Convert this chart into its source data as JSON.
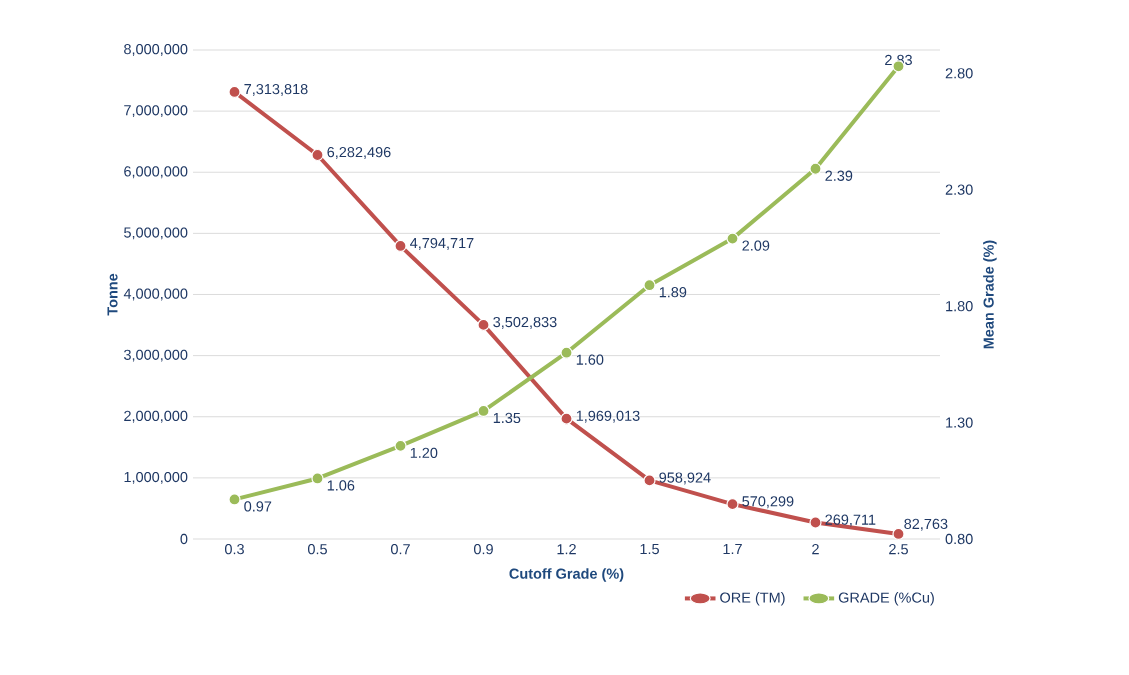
{
  "chart_data": {
    "type": "line",
    "xlabel": "Cutoff Grade (%)",
    "ylabel": "Tonne",
    "y2label": "Mean Grade (%)",
    "categories": [
      "0.3",
      "0.5",
      "0.7",
      "0.9",
      "1.2",
      "1.5",
      "1.7",
      "2",
      "2.5"
    ],
    "series": [
      {
        "name": "ORE (TM)",
        "color": "#c0504d",
        "values": [
          7313818,
          6282496,
          4794717,
          3502833,
          1969013,
          958924,
          570299,
          269711,
          82763
        ],
        "value_labels": [
          "7,313,818",
          "6,282,496",
          "4,794,717",
          "3,502,833",
          "1,969,013",
          "958,924",
          "570,299",
          "269,711",
          "82,763"
        ]
      },
      {
        "name": "GRADE (%Cu)",
        "color": "#9bbb59",
        "axis": "y2",
        "values": [
          0.97,
          1.06,
          1.2,
          1.35,
          1.6,
          1.89,
          2.09,
          2.39,
          2.83
        ],
        "value_labels": [
          "0.97",
          "1.06",
          "1.20",
          "1.35",
          "1.60",
          "1.89",
          "2.09",
          "2.39",
          "2.83"
        ]
      }
    ],
    "ylim": [
      0,
      8000000
    ],
    "yticks": [
      0,
      {
        "value": 1000000,
        "label": "1,000,000"
      },
      {
        "value": 2000000,
        "label": "2,000,000"
      },
      {
        "value": 3000000,
        "label": "3,000,000"
      },
      {
        "value": 4000000,
        "label": "4,000,000"
      },
      {
        "value": 5000000,
        "label": "5,000,000"
      },
      {
        "value": 6000000,
        "label": "6,000,000"
      },
      {
        "value": 7000000,
        "label": "7,000,000"
      },
      {
        "value": 8000000,
        "label": "8,000,000"
      }
    ],
    "y2lim": [
      0.8,
      2.9
    ],
    "y2ticks": [
      {
        "value": 0.8,
        "label": "0.80"
      },
      {
        "value": 1.3,
        "label": "1.30"
      },
      {
        "value": 1.8,
        "label": "1.80"
      },
      {
        "value": 2.3,
        "label": "2.30"
      },
      {
        "value": 2.8,
        "label": "2.80"
      }
    ],
    "grid": "y",
    "legend": "bottom right",
    "marker": "circle",
    "line_style": "solid"
  }
}
